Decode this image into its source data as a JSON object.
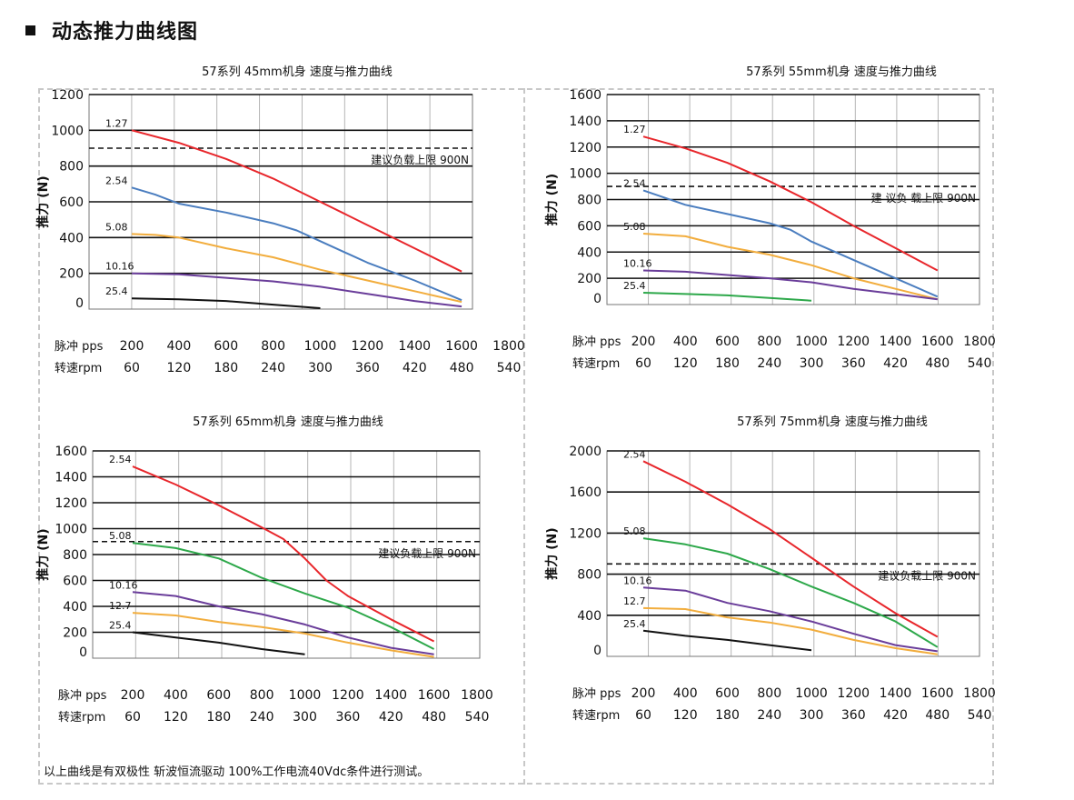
{
  "header": {
    "title": "动态推力曲线图"
  },
  "footnote": "以上曲线是有双极性 斩波恒流驱动 100%工作电流40Vdc条件进行测试。",
  "colors": {
    "red": "#e8262b",
    "blue": "#4a7dbf",
    "orange": "#f2ad3d",
    "purple": "#6a3d9a",
    "black": "#111111",
    "green": "#2da84a"
  },
  "chart_data": [
    {
      "type": "line",
      "title": "57系列 45mm机身 速度与推力曲线",
      "ylabel": "推力 (N)",
      "ylim": [
        0,
        1200
      ],
      "y_ticks": [
        "0",
        "200",
        "400",
        "600",
        "800",
        "1000",
        "1200"
      ],
      "x_pps_label": "脉冲 pps",
      "x_rpm_label": "转速rpm",
      "x_pps": [
        "200",
        "400",
        "600",
        "800",
        "1000",
        "1200",
        "1400",
        "1600",
        "1800"
      ],
      "x_rpm": [
        "60",
        "120",
        "180",
        "240",
        "300",
        "360",
        "420",
        "480",
        "540"
      ],
      "limit_label": "建议负载上限 900N",
      "limit_value": 900,
      "series": [
        {
          "name": "1.27",
          "color": "red",
          "x": [
            200,
            400,
            600,
            800,
            1000,
            1200,
            1400,
            1600
          ],
          "y": [
            1000,
            930,
            840,
            730,
            600,
            470,
            340,
            210
          ]
        },
        {
          "name": "2.54",
          "color": "blue",
          "x": [
            200,
            300,
            400,
            600,
            800,
            900,
            1000,
            1200,
            1400,
            1600
          ],
          "y": [
            680,
            640,
            590,
            540,
            480,
            440,
            380,
            260,
            160,
            50
          ]
        },
        {
          "name": "5.08",
          "color": "orange",
          "x": [
            200,
            300,
            400,
            600,
            800,
            1000,
            1200,
            1400,
            1600
          ],
          "y": [
            420,
            415,
            400,
            340,
            290,
            220,
            160,
            100,
            40
          ]
        },
        {
          "name": "10.16",
          "color": "purple",
          "x": [
            200,
            400,
            600,
            800,
            1000,
            1200,
            1400,
            1600
          ],
          "y": [
            200,
            195,
            175,
            155,
            125,
            85,
            45,
            15
          ]
        },
        {
          "name": "25.4",
          "color": "black",
          "x": [
            200,
            400,
            600,
            800,
            1000
          ],
          "y": [
            60,
            55,
            45,
            25,
            5
          ]
        }
      ]
    },
    {
      "type": "line",
      "title": "57系列 55mm机身 速度与推力曲线",
      "ylabel": "推力 (N)",
      "ylim": [
        0,
        1600
      ],
      "y_ticks": [
        "0",
        "200",
        "400",
        "600",
        "800",
        "1000",
        "1200",
        "1400",
        "1600"
      ],
      "x_pps_label": "脉冲 pps",
      "x_rpm_label": "转速rpm",
      "x_pps": [
        "200",
        "400",
        "600",
        "800",
        "1000",
        "1200",
        "1400",
        "1600",
        "1800"
      ],
      "x_rpm": [
        "60",
        "120",
        "180",
        "240",
        "300",
        "360",
        "420",
        "480",
        "540"
      ],
      "limit_label": "建 议负 载上限 900N",
      "limit_value": 900,
      "series": [
        {
          "name": "1.27",
          "color": "red",
          "x": [
            200,
            400,
            600,
            800,
            1000,
            1200,
            1400,
            1600
          ],
          "y": [
            1280,
            1190,
            1080,
            940,
            780,
            600,
            430,
            260
          ]
        },
        {
          "name": "2.54",
          "color": "blue",
          "x": [
            200,
            400,
            600,
            800,
            900,
            1000,
            1200,
            1400,
            1600
          ],
          "y": [
            870,
            760,
            690,
            620,
            570,
            480,
            340,
            200,
            60
          ]
        },
        {
          "name": "5.08",
          "color": "orange",
          "x": [
            200,
            400,
            600,
            800,
            1000,
            1200,
            1400,
            1600
          ],
          "y": [
            540,
            520,
            440,
            380,
            300,
            200,
            120,
            40
          ]
        },
        {
          "name": "10.16",
          "color": "purple",
          "x": [
            200,
            400,
            600,
            800,
            1000,
            1200,
            1400,
            1600
          ],
          "y": [
            260,
            250,
            225,
            200,
            170,
            120,
            80,
            40
          ]
        },
        {
          "name": "25.4",
          "color": "green",
          "x": [
            200,
            400,
            600,
            800,
            1000
          ],
          "y": [
            90,
            80,
            70,
            50,
            30
          ]
        }
      ]
    },
    {
      "type": "line",
      "title": "57系列 65mm机身 速度与推力曲线",
      "ylabel": "推力 (N)",
      "ylim": [
        0,
        1600
      ],
      "y_ticks": [
        "0",
        "200",
        "400",
        "600",
        "800",
        "1000",
        "1200",
        "1400",
        "1600"
      ],
      "x_pps_label": "脉冲 pps",
      "x_rpm_label": "转速rpm",
      "x_pps": [
        "200",
        "400",
        "600",
        "800",
        "1000",
        "1200",
        "1400",
        "1600",
        "1800"
      ],
      "x_rpm": [
        "60",
        "120",
        "180",
        "240",
        "300",
        "360",
        "420",
        "480",
        "540"
      ],
      "limit_label": "建议负载上限 900N",
      "limit_value": 900,
      "series": [
        {
          "name": "2.54",
          "color": "red",
          "x": [
            200,
            400,
            600,
            800,
            900,
            1000,
            1100,
            1200,
            1400,
            1600
          ],
          "y": [
            1480,
            1340,
            1180,
            1010,
            920,
            770,
            600,
            480,
            300,
            130
          ]
        },
        {
          "name": "5.08",
          "color": "green",
          "x": [
            200,
            400,
            600,
            800,
            1000,
            1200,
            1400,
            1600
          ],
          "y": [
            890,
            850,
            770,
            620,
            500,
            390,
            240,
            70
          ]
        },
        {
          "name": "10.16",
          "color": "purple",
          "x": [
            200,
            400,
            600,
            800,
            1000,
            1200,
            1400,
            1600
          ],
          "y": [
            510,
            480,
            400,
            340,
            260,
            160,
            80,
            30
          ]
        },
        {
          "name": "12.7",
          "color": "orange",
          "x": [
            200,
            400,
            600,
            800,
            1000,
            1200,
            1400,
            1600
          ],
          "y": [
            350,
            330,
            280,
            240,
            190,
            120,
            60,
            10
          ]
        },
        {
          "name": "25.4",
          "color": "black",
          "x": [
            200,
            400,
            600,
            800,
            1000
          ],
          "y": [
            200,
            160,
            120,
            70,
            30
          ]
        }
      ]
    },
    {
      "type": "line",
      "title": "57系列 75mm机身 速度与推力曲线",
      "ylabel": "推力 (N)",
      "ylim": [
        0,
        2000
      ],
      "y_ticks": [
        "0",
        "400",
        "800",
        "1200",
        "1600",
        "2000"
      ],
      "x_pps_label": "脉冲 pps",
      "x_rpm_label": "转速rpm",
      "x_pps": [
        "200",
        "400",
        "600",
        "800",
        "1000",
        "1200",
        "1400",
        "1600",
        "1800"
      ],
      "x_rpm": [
        "60",
        "120",
        "180",
        "240",
        "300",
        "360",
        "420",
        "480",
        "540"
      ],
      "limit_label": "建议负载上限 900N",
      "limit_value": 900,
      "series": [
        {
          "name": "2.54",
          "color": "red",
          "x": [
            200,
            400,
            600,
            800,
            900,
            1000,
            1200,
            1400,
            1600
          ],
          "y": [
            1900,
            1700,
            1480,
            1240,
            1100,
            960,
            680,
            420,
            190
          ]
        },
        {
          "name": "5.08",
          "color": "green",
          "x": [
            200,
            400,
            600,
            800,
            1000,
            1200,
            1400,
            1600
          ],
          "y": [
            1150,
            1090,
            1000,
            850,
            680,
            520,
            340,
            90
          ]
        },
        {
          "name": "10.16",
          "color": "purple",
          "x": [
            200,
            400,
            600,
            800,
            1000,
            1200,
            1400,
            1600
          ],
          "y": [
            670,
            640,
            520,
            440,
            340,
            220,
            110,
            50
          ]
        },
        {
          "name": "12.7",
          "color": "orange",
          "x": [
            200,
            400,
            600,
            800,
            1000,
            1200,
            1400,
            1600
          ],
          "y": [
            470,
            460,
            380,
            330,
            260,
            160,
            80,
            20
          ]
        },
        {
          "name": "25.4",
          "color": "black",
          "x": [
            200,
            400,
            600,
            800,
            1000
          ],
          "y": [
            250,
            200,
            160,
            110,
            60
          ]
        }
      ]
    }
  ]
}
